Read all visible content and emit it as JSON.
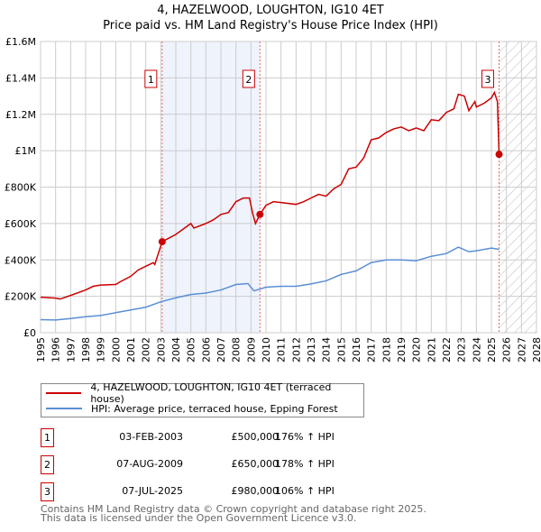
{
  "chart_data": {
    "type": "line",
    "title": "4, HAZELWOOD, LOUGHTON, IG10 4ET",
    "subtitle": "Price paid vs. HM Land Registry's House Price Index (HPI)",
    "xlim": [
      1995,
      2028
    ],
    "ylim": [
      0,
      1600000
    ],
    "x_ticks": [
      "1995",
      "1996",
      "1997",
      "1998",
      "1999",
      "2000",
      "2001",
      "2002",
      "2003",
      "2004",
      "2005",
      "2006",
      "2007",
      "2008",
      "2009",
      "2010",
      "2011",
      "2012",
      "2013",
      "2014",
      "2015",
      "2016",
      "2017",
      "2018",
      "2019",
      "2020",
      "2021",
      "2022",
      "2023",
      "2024",
      "2025",
      "2026",
      "2027",
      "2028"
    ],
    "y_ticks": [
      {
        "v": 0,
        "label": "£0"
      },
      {
        "v": 200000,
        "label": "£200K"
      },
      {
        "v": 400000,
        "label": "£400K"
      },
      {
        "v": 600000,
        "label": "£600K"
      },
      {
        "v": 800000,
        "label": "£800K"
      },
      {
        "v": 1000000,
        "label": "£1M"
      },
      {
        "v": 1200000,
        "label": "£1.2M"
      },
      {
        "v": 1400000,
        "label": "£1.4M"
      },
      {
        "v": 1600000,
        "label": "£1.6M"
      }
    ],
    "grid": true,
    "shaded_period": [
      2003.09,
      2009.6
    ],
    "forecast_hatch_from": 2025.51,
    "series": [
      {
        "name": "4, HAZELWOOD, LOUGHTON, IG10 4ET (terraced house)",
        "color": "#cc0000",
        "x": [
          1995,
          1996,
          1996.3,
          1997,
          1998,
          1998.5,
          1999,
          2000,
          2000.3,
          2001,
          2001.5,
          2002,
          2002.5,
          2002.6,
          2003.09,
          2004,
          2005,
          2005.2,
          2006,
          2006.5,
          2007,
          2007.5,
          2008,
          2008.5,
          2008.9,
          2009.1,
          2009.3,
          2009.6,
          2010,
          2010.5,
          2011,
          2012,
          2012.5,
          2013,
          2013.5,
          2014,
          2014.5,
          2015,
          2015.5,
          2016,
          2016.5,
          2017,
          2017.5,
          2018,
          2018.5,
          2019,
          2019.5,
          2020,
          2020.5,
          2021,
          2021.5,
          2022,
          2022.5,
          2022.8,
          2023.2,
          2023.5,
          2023.9,
          2024,
          2024.5,
          2025,
          2025.2,
          2025.4,
          2025.51
        ],
        "y": [
          195000,
          190000,
          185000,
          205000,
          235000,
          255000,
          262000,
          265000,
          280000,
          310000,
          345000,
          365000,
          385000,
          375000,
          500000,
          540000,
          600000,
          575000,
          600000,
          620000,
          650000,
          660000,
          720000,
          740000,
          740000,
          660000,
          600000,
          650000,
          700000,
          720000,
          715000,
          705000,
          720000,
          740000,
          760000,
          750000,
          790000,
          815000,
          900000,
          910000,
          960000,
          1060000,
          1070000,
          1100000,
          1120000,
          1130000,
          1110000,
          1125000,
          1110000,
          1170000,
          1165000,
          1210000,
          1230000,
          1310000,
          1300000,
          1220000,
          1270000,
          1240000,
          1260000,
          1290000,
          1320000,
          1270000,
          980000
        ]
      },
      {
        "name": "HPI: Average price, terraced house, Epping Forest",
        "color": "#5b8fd4",
        "x": [
          1995,
          1996,
          1997,
          1998,
          1999,
          2000,
          2001,
          2002,
          2003,
          2004,
          2005,
          2006,
          2007,
          2008,
          2008.8,
          2009.2,
          2010,
          2011,
          2012,
          2013,
          2014,
          2015,
          2016,
          2017,
          2018,
          2019,
          2020,
          2021,
          2022,
          2022.8,
          2023.5,
          2024,
          2025,
          2025.51
        ],
        "y": [
          72000,
          70000,
          78000,
          88000,
          95000,
          110000,
          125000,
          140000,
          170000,
          192000,
          210000,
          218000,
          235000,
          265000,
          270000,
          230000,
          250000,
          255000,
          255000,
          268000,
          285000,
          320000,
          340000,
          385000,
          400000,
          400000,
          395000,
          420000,
          435000,
          470000,
          445000,
          450000,
          465000,
          458000
        ]
      }
    ],
    "sales": [
      {
        "n": "1",
        "x": 2003.09,
        "y": 500000,
        "date": "03-FEB-2003",
        "price": "£500,000",
        "hpi": "176% ↑ HPI"
      },
      {
        "n": "2",
        "x": 2009.6,
        "y": 650000,
        "date": "07-AUG-2009",
        "price": "£650,000",
        "hpi": "178% ↑ HPI"
      },
      {
        "n": "3",
        "x": 2025.51,
        "y": 980000,
        "date": "07-JUL-2025",
        "price": "£980,000",
        "hpi": "106% ↑ HPI"
      }
    ]
  },
  "footer": {
    "line1": "Contains HM Land Registry data © Crown copyright and database right 2025.",
    "line2": "This data is licensed under the Open Government Licence v3.0."
  }
}
